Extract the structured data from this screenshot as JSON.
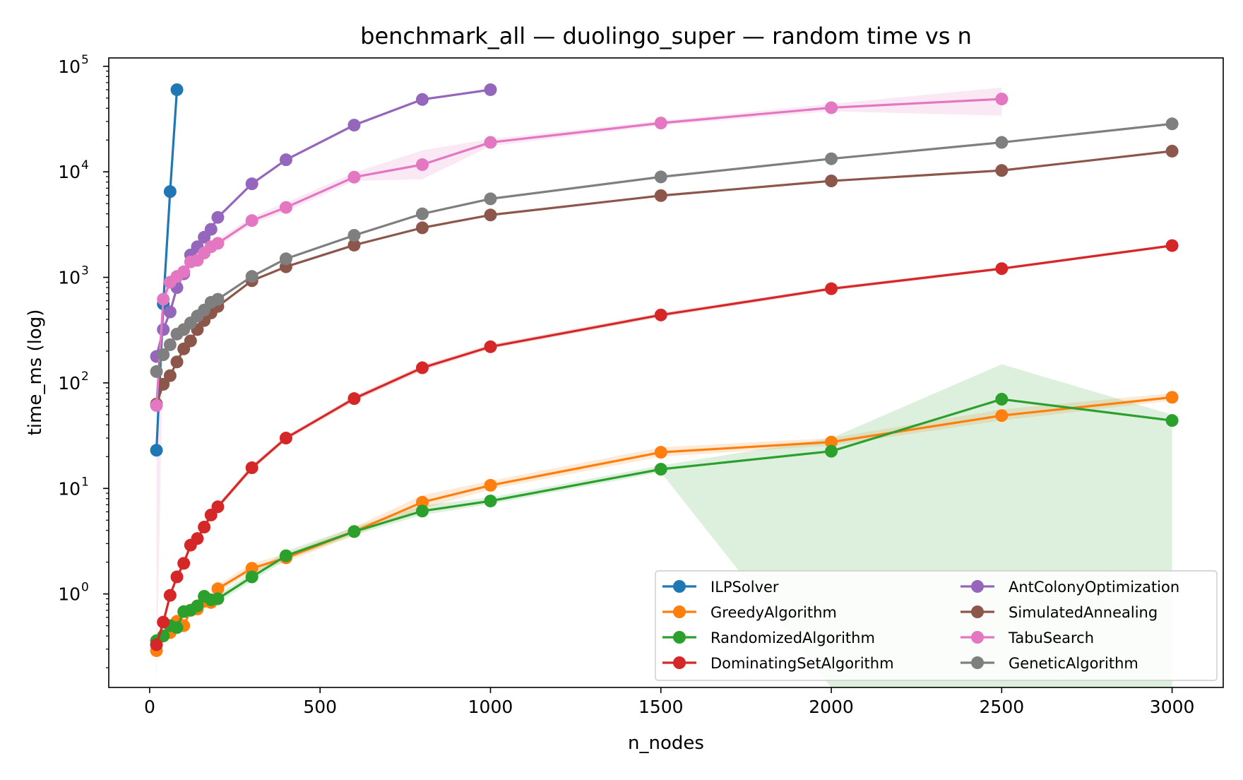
{
  "chart_data": {
    "type": "line",
    "title": "benchmark_all — duolingo_super — random time vs n",
    "xlabel": "n_nodes",
    "ylabel": "time_ms (log)",
    "yscale": "log",
    "xlim": [
      -120,
      3150
    ],
    "ylim": [
      0.13,
      120000
    ],
    "x_ticks": [
      0,
      500,
      1000,
      1500,
      2000,
      2500,
      3000
    ],
    "x_tick_labels": [
      "0",
      "500",
      "1000",
      "1500",
      "2000",
      "2500",
      "3000"
    ],
    "y_ticks": [
      1,
      10,
      100,
      1000,
      10000,
      100000
    ],
    "y_tick_labels": [
      {
        "base": "10",
        "exp": "0"
      },
      {
        "base": "10",
        "exp": "1"
      },
      {
        "base": "10",
        "exp": "2"
      },
      {
        "base": "10",
        "exp": "3"
      },
      {
        "base": "10",
        "exp": "4"
      },
      {
        "base": "10",
        "exp": "5"
      }
    ],
    "grid": false,
    "legend_position": "lower right",
    "series": [
      {
        "name": "ILPSolver",
        "color": "#1f77b4",
        "x": [
          20,
          40,
          60,
          80
        ],
        "y": [
          23,
          560,
          6500,
          60000
        ]
      },
      {
        "name": "GreedyAlgorithm",
        "color": "#ff7f0e",
        "x": [
          20,
          40,
          60,
          80,
          100,
          120,
          140,
          160,
          180,
          200,
          300,
          400,
          600,
          800,
          1000,
          1500,
          2000,
          2500,
          3000
        ],
        "y": [
          0.29,
          0.4,
          0.43,
          0.55,
          0.5,
          0.7,
          0.72,
          0.85,
          0.83,
          1.12,
          1.75,
          2.2,
          3.9,
          7.4,
          10.7,
          22,
          27.5,
          49,
          73
        ],
        "band_low": [
          0.27,
          0.37,
          0.4,
          0.5,
          0.46,
          0.65,
          0.67,
          0.79,
          0.78,
          1.04,
          1.6,
          2.0,
          3.6,
          6.4,
          9.8,
          20,
          25.5,
          44,
          68
        ],
        "band_high": [
          0.31,
          0.44,
          0.47,
          0.6,
          0.55,
          0.76,
          0.78,
          0.92,
          0.9,
          1.22,
          1.95,
          2.4,
          4.3,
          8.6,
          11.8,
          24.5,
          30,
          56,
          80
        ]
      },
      {
        "name": "RandomizedAlgorithm",
        "color": "#2ca02c",
        "x": [
          20,
          40,
          60,
          80,
          100,
          120,
          140,
          160,
          180,
          200,
          300,
          400,
          600,
          800,
          1000,
          1500,
          2000,
          2500,
          3000
        ],
        "y": [
          0.36,
          0.4,
          0.5,
          0.48,
          0.68,
          0.7,
          0.77,
          0.95,
          0.88,
          0.9,
          1.45,
          2.3,
          3.9,
          6.1,
          7.6,
          15.2,
          22.5,
          70,
          44
        ],
        "band_low": [
          0.34,
          0.37,
          0.46,
          0.44,
          0.62,
          0.64,
          0.71,
          0.87,
          0.81,
          0.83,
          1.32,
          2.1,
          3.6,
          5.6,
          7.1,
          14.2,
          0.13,
          0.13,
          0.13
        ],
        "band_high": [
          0.38,
          0.44,
          0.55,
          0.53,
          0.74,
          0.77,
          0.84,
          1.04,
          0.96,
          0.98,
          1.6,
          2.55,
          4.3,
          6.9,
          8.2,
          16.5,
          30,
          150,
          50
        ]
      },
      {
        "name": "DominatingSetAlgorithm",
        "color": "#d62728",
        "x": [
          20,
          40,
          60,
          80,
          100,
          120,
          140,
          160,
          180,
          200,
          300,
          400,
          600,
          800,
          1000,
          1500,
          2000,
          2500,
          3000
        ],
        "y": [
          0.33,
          0.54,
          0.97,
          1.45,
          1.95,
          2.9,
          3.35,
          4.3,
          5.6,
          6.7,
          15.7,
          30,
          71,
          139,
          220,
          440,
          780,
          1210,
          2000
        ],
        "band_low": [
          0.31,
          0.5,
          0.9,
          1.35,
          1.82,
          2.7,
          3.1,
          4.0,
          5.2,
          6.3,
          14.8,
          28.5,
          67,
          131,
          210,
          420,
          750,
          1170,
          1940
        ],
        "band_high": [
          0.35,
          0.58,
          1.04,
          1.55,
          2.1,
          3.1,
          3.6,
          4.6,
          6.0,
          7.1,
          16.8,
          31.5,
          75,
          147,
          232,
          460,
          810,
          1250,
          2060
        ]
      },
      {
        "name": "AntColonyOptimization",
        "color": "#9467bd",
        "x": [
          20,
          40,
          60,
          80,
          100,
          120,
          140,
          160,
          180,
          200,
          300,
          400,
          600,
          800,
          1000
        ],
        "y": [
          178,
          320,
          470,
          800,
          1080,
          1630,
          1950,
          2400,
          2850,
          3700,
          7700,
          13000,
          27700,
          48500,
          60000
        ]
      },
      {
        "name": "SimulatedAnnealing",
        "color": "#8c564b",
        "x": [
          20,
          40,
          60,
          80,
          100,
          120,
          140,
          160,
          180,
          200,
          300,
          400,
          600,
          800,
          1000,
          1500,
          2000,
          2500,
          3000
        ],
        "y": [
          63,
          97,
          117,
          158,
          210,
          250,
          320,
          390,
          460,
          530,
          930,
          1260,
          2020,
          2950,
          3900,
          5950,
          8200,
          10300,
          15700
        ]
      },
      {
        "name": "TabuSearch",
        "color": "#e377c2",
        "x": [
          20,
          40,
          60,
          80,
          100,
          120,
          140,
          160,
          180,
          200,
          300,
          400,
          600,
          800,
          1000,
          1500,
          2000,
          2500
        ],
        "y": [
          61,
          620,
          900,
          1020,
          1130,
          1400,
          1450,
          1700,
          1950,
          2100,
          3450,
          4600,
          8900,
          11700,
          19000,
          29000,
          40500,
          49000
        ],
        "band_low": [
          0.13,
          300,
          780,
          930,
          1040,
          1290,
          1330,
          1560,
          1800,
          1950,
          3200,
          4200,
          8200,
          8500,
          17500,
          27500,
          37500,
          34000
        ],
        "band_high": [
          75,
          720,
          1030,
          1120,
          1230,
          1520,
          1580,
          1850,
          2120,
          2300,
          3750,
          5100,
          9800,
          16000,
          20500,
          30500,
          44000,
          63000
        ]
      },
      {
        "name": "GeneticAlgorithm",
        "color": "#7f7f7f",
        "x": [
          20,
          40,
          60,
          80,
          100,
          120,
          140,
          160,
          180,
          200,
          300,
          400,
          600,
          800,
          1000,
          1500,
          2000,
          2500,
          3000
        ],
        "y": [
          128,
          185,
          230,
          290,
          320,
          370,
          430,
          490,
          580,
          620,
          1020,
          1500,
          2500,
          4000,
          5550,
          8950,
          13300,
          19000,
          28500
        ]
      }
    ]
  }
}
